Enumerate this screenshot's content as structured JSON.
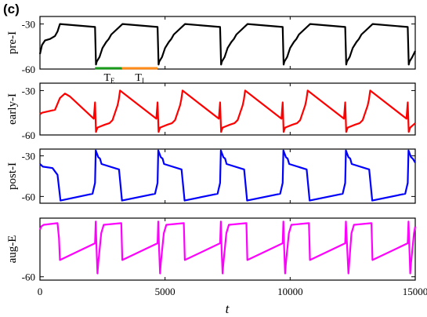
{
  "figure": {
    "panel_label": "(c)"
  },
  "chart_data": {
    "type": "line",
    "x_range": [
      0,
      15000
    ],
    "x_ticks": [
      0,
      5000,
      10000,
      15000
    ],
    "x_tick_labels": [
      "0",
      "5000",
      "10000",
      "15000"
    ],
    "xlabel": "t",
    "grid": false,
    "period": 2500,
    "panels": [
      {
        "ylabel": "pre-I",
        "color": "#000000",
        "ylim": [
          -60,
          -25
        ],
        "y_ticks": [
          -30,
          -60
        ],
        "y_tick_labels": [
          "-30",
          "-60"
        ],
        "x": [
          0,
          80,
          200,
          400,
          600,
          700,
          800,
          2200,
          2240,
          2270,
          2380,
          2500,
          2650,
          2750,
          2850,
          3300,
          4700,
          4740,
          4770,
          4880,
          5000,
          5150,
          5250,
          5350,
          5800,
          7200,
          7240,
          7270,
          7380,
          7500,
          7650,
          7750,
          7850,
          8300,
          9700,
          9740,
          9770,
          9880,
          10000,
          10150,
          10250,
          10350,
          10800,
          12200,
          12240,
          12270,
          12380,
          12500,
          12650,
          12750,
          12850,
          13300,
          14700,
          14740,
          14770,
          14880,
          15000
        ],
        "y": [
          -50,
          -44,
          -41,
          -40,
          -38,
          -35,
          -30,
          -32,
          -57,
          -55,
          -52,
          -46,
          -42,
          -40,
          -37,
          -30,
          -32,
          -57,
          -55,
          -52,
          -46,
          -42,
          -40,
          -37,
          -30,
          -32,
          -57,
          -55,
          -52,
          -46,
          -42,
          -40,
          -37,
          -30,
          -32,
          -57,
          -55,
          -52,
          -46,
          -42,
          -40,
          -37,
          -30,
          -32,
          -57,
          -55,
          -52,
          -46,
          -42,
          -40,
          -37,
          -30,
          -32,
          -57,
          -55,
          -52,
          -48
        ]
      },
      {
        "ylabel": "early-I",
        "color": "#ff0000",
        "ylim": [
          -60,
          -25
        ],
        "y_ticks": [
          -30,
          -60
        ],
        "y_tick_labels": [
          "-30",
          "-60"
        ],
        "x": [
          0,
          80,
          600,
          800,
          1000,
          1200,
          2150,
          2200,
          2240,
          2300,
          2600,
          2780,
          2900,
          3000,
          3100,
          3150,
          3200,
          4650,
          4700,
          4740,
          4800,
          5100,
          5280,
          5400,
          5500,
          5600,
          5650,
          5700,
          7150,
          7200,
          7240,
          7300,
          7600,
          7780,
          7900,
          8000,
          8100,
          8150,
          8200,
          9650,
          9700,
          9740,
          9800,
          10100,
          10280,
          10400,
          10500,
          10600,
          10650,
          10700,
          12150,
          12200,
          12240,
          12300,
          12600,
          12780,
          12900,
          13000,
          13100,
          13150,
          13200,
          14650,
          14700,
          14740,
          14800,
          15000
        ],
        "y": [
          -46,
          -45,
          -43,
          -35,
          -32,
          -34,
          -49,
          -38,
          -58,
          -55,
          -53,
          -52,
          -50,
          -45,
          -40,
          -36,
          -30,
          -49,
          -38,
          -58,
          -55,
          -53,
          -52,
          -50,
          -45,
          -40,
          -36,
          -30,
          -49,
          -38,
          -58,
          -55,
          -53,
          -52,
          -50,
          -45,
          -40,
          -36,
          -30,
          -49,
          -38,
          -58,
          -55,
          -53,
          -52,
          -50,
          -45,
          -40,
          -36,
          -30,
          -49,
          -38,
          -58,
          -55,
          -53,
          -52,
          -50,
          -45,
          -40,
          -36,
          -30,
          -49,
          -38,
          -58,
          -55,
          -52
        ]
      },
      {
        "ylabel": "post-I",
        "color": "#0000ff",
        "ylim": [
          -65,
          -25
        ],
        "y_ticks": [
          -30,
          -60
        ],
        "y_tick_labels": [
          "-30",
          "-60"
        ],
        "x": [
          0,
          120,
          500,
          700,
          820,
          2100,
          2200,
          2230,
          2330,
          2400,
          2460,
          3160,
          3280,
          4600,
          4700,
          4730,
          4830,
          4900,
          4960,
          5660,
          5780,
          7100,
          7200,
          7230,
          7330,
          7400,
          7460,
          8160,
          8280,
          9600,
          9700,
          9730,
          9830,
          9900,
          9960,
          10660,
          10780,
          12100,
          12200,
          12230,
          12330,
          12400,
          12460,
          13160,
          13280,
          14600,
          14700,
          14730,
          14830,
          14900,
          15000
        ],
        "y": [
          -36,
          -38,
          -39,
          -44,
          -63,
          -58,
          -50,
          -26,
          -31,
          -32,
          -36,
          -40,
          -63,
          -58,
          -50,
          -26,
          -31,
          -32,
          -36,
          -40,
          -63,
          -58,
          -50,
          -26,
          -31,
          -32,
          -36,
          -40,
          -63,
          -58,
          -50,
          -26,
          -31,
          -32,
          -36,
          -40,
          -63,
          -58,
          -50,
          -26,
          -31,
          -32,
          -36,
          -40,
          -63,
          -58,
          -50,
          -26,
          -31,
          -32,
          -35
        ]
      },
      {
        "ylabel": "aug-E",
        "color": "#ff00ff",
        "ylim": [
          -62,
          -25
        ],
        "y_ticks": [
          -60
        ],
        "y_tick_labels": [
          "-60"
        ],
        "x": [
          0,
          50,
          150,
          700,
          760,
          800,
          2200,
          2230,
          2260,
          2300,
          2330,
          2450,
          2550,
          3250,
          3290,
          4700,
          4730,
          4760,
          4800,
          4830,
          4950,
          5050,
          5750,
          5790,
          7200,
          7230,
          7260,
          7300,
          7330,
          7450,
          7550,
          8250,
          8290,
          9700,
          9730,
          9760,
          9800,
          9830,
          9950,
          10050,
          10750,
          10790,
          12200,
          12230,
          12330,
          12360,
          12450,
          12550,
          13250,
          13290,
          14700,
          14730,
          14800,
          14830,
          14950,
          15000
        ],
        "y": [
          -32,
          -30,
          -29,
          -28,
          -37,
          -50,
          -40,
          -27,
          -43,
          -58,
          -52,
          -34,
          -29,
          -28,
          -50,
          -40,
          -27,
          -43,
          -58,
          -52,
          -34,
          -29,
          -28,
          -50,
          -40,
          -27,
          -43,
          -58,
          -52,
          -34,
          -29,
          -28,
          -50,
          -40,
          -27,
          -43,
          -58,
          -52,
          -34,
          -29,
          -28,
          -50,
          -40,
          -27,
          -58,
          -52,
          -34,
          -29,
          -28,
          -50,
          -40,
          -27,
          -58,
          -52,
          -34,
          -30
        ]
      }
    ],
    "annotations": [
      {
        "text": "T",
        "subscript": "E",
        "color": "#1a9a1a",
        "x_start": 2200,
        "x_end": 3280
      },
      {
        "text": "T",
        "subscript": "I",
        "color": "#ff8c1a",
        "x_start": 3280,
        "x_end": 4700
      }
    ]
  }
}
